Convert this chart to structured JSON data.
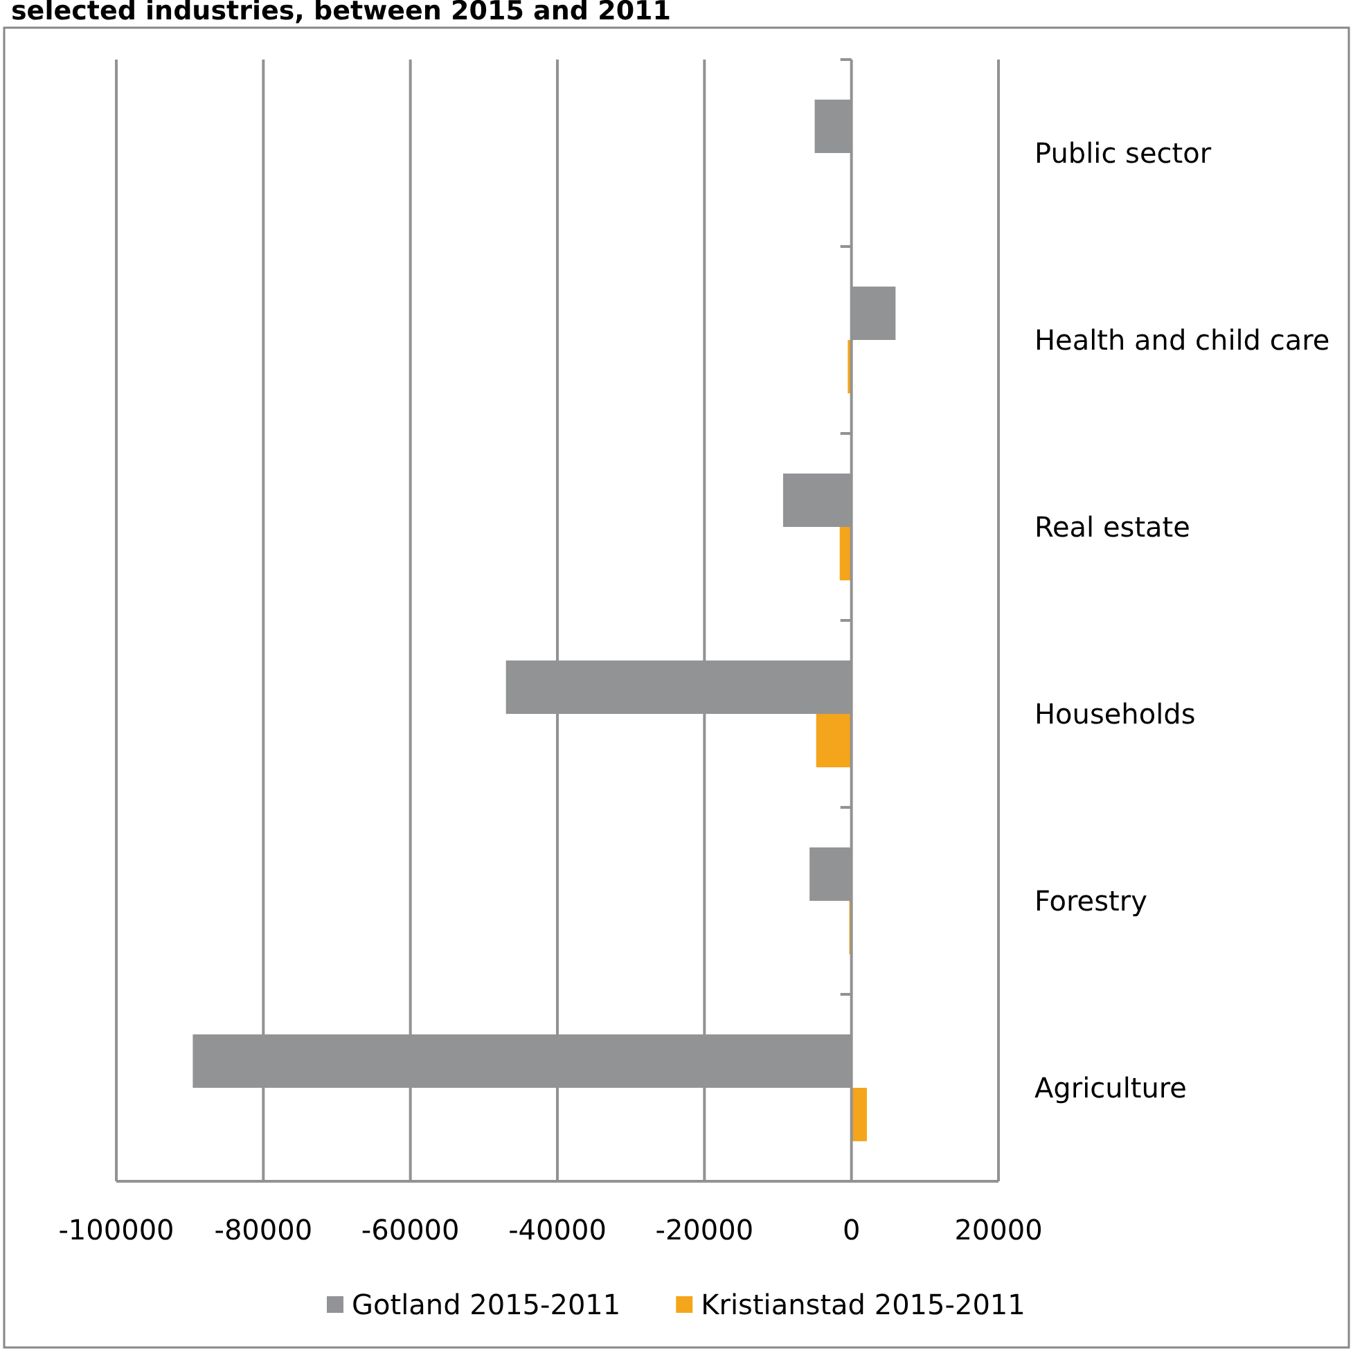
{
  "chart_data": {
    "type": "bar",
    "orientation": "horizontal",
    "title": "selected industries, between 2015 and 2011",
    "categories": [
      "Public sector",
      "Health and child care",
      "Real estate",
      "Households",
      "Forestry",
      "Agriculture"
    ],
    "series": [
      {
        "name": "Gotland 2015-2011",
        "color": "#929395",
        "values": [
          -5000,
          6000,
          -9300,
          -47000,
          -5700,
          -89600
        ]
      },
      {
        "name": "Kristianstad 2015-2011",
        "color": "#f4a51c",
        "values": [
          0,
          -500,
          -1600,
          -4800,
          -300,
          2100
        ]
      }
    ],
    "xlim": [
      -100000,
      20000
    ],
    "xticks": [
      -100000,
      -80000,
      -60000,
      -40000,
      -20000,
      0,
      20000
    ],
    "grid": "x",
    "legend": "bottom"
  }
}
